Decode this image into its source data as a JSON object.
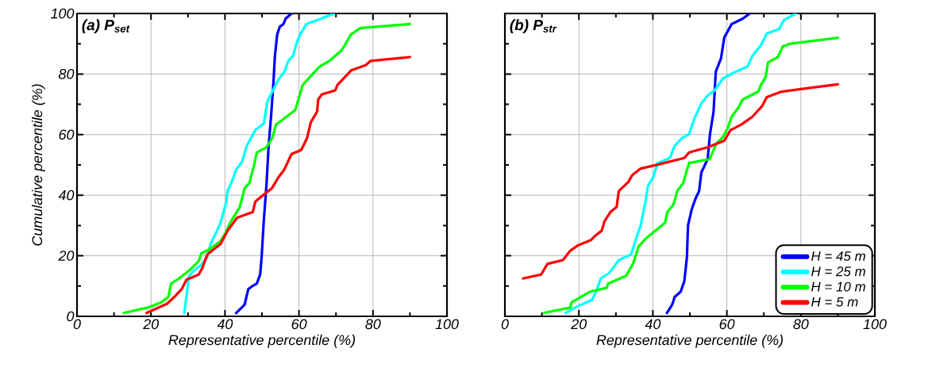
{
  "chart_data": [
    {
      "type": "line",
      "title": "(a) P$_{set}$",
      "xlabel": "Representative percentile (%)",
      "ylabel": "Cumulative percentile (%)",
      "xlim": [
        0,
        100
      ],
      "xticks": [
        0,
        20,
        40,
        60,
        80,
        100
      ],
      "ylim": [
        0,
        100
      ],
      "yticks": [
        0,
        20,
        40,
        60,
        80,
        100
      ],
      "grid": true,
      "legend": false,
      "series": [
        {
          "color": "#0000ff",
          "x": [
            43.0,
            45.3,
            46.3,
            47.3,
            48.6,
            49.5,
            49.9,
            50.5,
            51.2,
            51.8,
            52.5,
            53.1,
            53.5,
            54.1,
            54.8,
            55.8,
            56.4,
            58.0
          ],
          "values": [
            1.1,
            3.8,
            9,
            9.9,
            10.8,
            13.8,
            19.5,
            31.8,
            43.1,
            56.3,
            66.8,
            77.3,
            86,
            93,
            95.6,
            96.5,
            98.3,
            100
          ]
        },
        {
          "color": "#00ffff",
          "x": [
            29.0,
            30.3,
            31.6,
            33.5,
            35.2,
            36.1,
            37.5,
            38.8,
            40.4,
            40.7,
            42.0,
            43.0,
            44.6,
            45.9,
            48.2,
            50.5,
            51.5,
            52.8,
            54.4,
            56.1,
            57.1,
            58.4,
            59.4,
            60.3,
            62.0,
            64.9,
            69.5
          ],
          "values": [
            1.1,
            13.4,
            15.1,
            16.9,
            19.5,
            23.9,
            27.4,
            30.9,
            37.9,
            41.4,
            44.9,
            48.4,
            51,
            56.3,
            61.5,
            63.7,
            71.1,
            74.2,
            78.1,
            80.8,
            84.3,
            86,
            90.4,
            93,
            96.5,
            97.8,
            100
          ]
        },
        {
          "color": "#00ff00",
          "x": [
            12.6,
            19.2,
            22.7,
            24.7,
            25.4,
            27.6,
            30.3,
            32.9,
            33.6,
            35.8,
            38.8,
            40.1,
            41.4,
            44.0,
            45.3,
            46.6,
            47.9,
            48.6,
            51.2,
            52.8,
            53.8,
            59.0,
            61.0,
            62.3,
            65.6,
            68.2,
            71.4,
            72.4,
            74.0,
            76.6,
            90.0
          ],
          "values": [
            1.1,
            2.9,
            4.6,
            6.4,
            10.8,
            12.5,
            15.1,
            18.2,
            20.8,
            22.1,
            24.8,
            27.4,
            30.9,
            36.1,
            42.3,
            44,
            50.1,
            54.1,
            55.8,
            58.9,
            63.3,
            68.1,
            76.4,
            78.1,
            82.5,
            84.3,
            87.7,
            89.5,
            93,
            95.2,
            96.5
          ]
        },
        {
          "color": "#ff0000",
          "x": [
            18.8,
            24.4,
            26.3,
            28.3,
            29.6,
            32.9,
            33.9,
            35.2,
            38.8,
            40.7,
            43.3,
            47.5,
            48.2,
            50.8,
            52.7,
            54.4,
            56.0,
            58.0,
            60.6,
            62.2,
            63.2,
            64.9,
            65.2,
            66.2,
            69.8,
            70.4,
            74.1,
            78.0,
            79.3,
            90.0
          ],
          "values": [
            1.1,
            4.2,
            6.4,
            9,
            12.1,
            13.8,
            16,
            20.4,
            23.9,
            28.3,
            32.6,
            34.4,
            37.9,
            40.5,
            42.3,
            45.8,
            48.4,
            53.6,
            54.9,
            58.9,
            64.1,
            67.6,
            71.6,
            73.3,
            74.6,
            76.4,
            81.2,
            82.9,
            84.3,
            85.6
          ]
        }
      ]
    },
    {
      "type": "line",
      "title": "(b) P$_{str}$",
      "xlabel": "Representative percentile (%)",
      "xlim": [
        0,
        100
      ],
      "xticks": [
        0,
        20,
        40,
        60,
        80,
        100
      ],
      "ylim": [
        0,
        100
      ],
      "yticks": [
        0,
        20,
        40,
        60,
        80,
        100
      ],
      "grid": true,
      "legend": "bottom right",
      "tick_labels": "x",
      "series": [
        {
          "name": "H = 45 m",
          "color": "#0000ff",
          "x": [
            43.8,
            45.2,
            45.9,
            47.5,
            48.5,
            49.2,
            49.5,
            50.5,
            51.5,
            52.5,
            53.1,
            54.8,
            55.4,
            56.4,
            57.0,
            58.4,
            59.3,
            61.3,
            64.3,
            66.2
          ],
          "values": [
            1.1,
            3.8,
            6.4,
            8.1,
            11.6,
            19.5,
            30,
            35.3,
            38.8,
            41.4,
            47.5,
            51.9,
            59.8,
            67.6,
            80.8,
            85.1,
            92.1,
            96.5,
            98.3,
            100
          ]
        },
        {
          "name": "H = 25 m",
          "color": "#00ffff",
          "x": [
            16.4,
            19.0,
            23.6,
            24.9,
            25.9,
            28.2,
            30.8,
            34.1,
            35.7,
            36.7,
            38.0,
            38.7,
            40.0,
            41.3,
            44.6,
            45.9,
            47.9,
            49.8,
            51.1,
            52.1,
            53.1,
            54.8,
            56.7,
            59.0,
            61.6,
            65.6,
            66.9,
            69.2,
            70.8,
            74.1,
            75.4,
            78.7
          ],
          "values": [
            1.1,
            2.9,
            5.5,
            9,
            12.5,
            14.3,
            18.6,
            20.4,
            26.5,
            30,
            37.9,
            43.1,
            45.8,
            50.6,
            52.3,
            56.3,
            58.9,
            60.2,
            65,
            67.6,
            70.3,
            72.9,
            74.6,
            78.6,
            80.3,
            82.5,
            86,
            89.5,
            93.4,
            94.8,
            97.8,
            100
          ]
        },
        {
          "name": "H = 10 m",
          "color": "#00ff00",
          "x": [
            10.5,
            17.7,
            18.0,
            22.9,
            27.5,
            27.9,
            32.8,
            34.8,
            36.1,
            38.0,
            43.3,
            43.9,
            45.6,
            46.6,
            48.2,
            48.9,
            49.8,
            55.4,
            57.0,
            59.0,
            60.3,
            61.3,
            62.9,
            64.3,
            68.5,
            69.2,
            70.5,
            71.1,
            73.8,
            75.1,
            77.1,
            90.0
          ],
          "values": [
            1.1,
            2.9,
            4.6,
            8.1,
            9.4,
            10.8,
            13.4,
            17.8,
            23,
            25.6,
            30.9,
            34.4,
            37,
            41.4,
            44,
            47.1,
            50.6,
            51.9,
            56.7,
            59.3,
            62.4,
            65.9,
            68.5,
            71.6,
            74.2,
            76.4,
            79,
            83.8,
            85.6,
            89.1,
            90,
            92
          ]
        },
        {
          "name": "H = 5 m",
          "color": "#ff0000",
          "x": [
            4.9,
            9.8,
            11.5,
            15.7,
            17.7,
            19.7,
            23.3,
            24.3,
            26.2,
            26.9,
            28.5,
            30.2,
            30.8,
            33.4,
            34.4,
            36.7,
            41.3,
            48.5,
            49.8,
            54.8,
            59.3,
            61.0,
            63.9,
            66.9,
            69.5,
            70.8,
            74.8,
            90.0
          ],
          "values": [
            12.5,
            13.8,
            17.3,
            18.6,
            21.7,
            23.4,
            25.2,
            26.5,
            28.3,
            31.3,
            34.4,
            36.1,
            41.4,
            44.4,
            46.6,
            48.8,
            50.1,
            52.3,
            54.1,
            55.8,
            58,
            61.5,
            63.3,
            65.9,
            69.4,
            72.4,
            74.2,
            76.6
          ]
        }
      ]
    }
  ]
}
